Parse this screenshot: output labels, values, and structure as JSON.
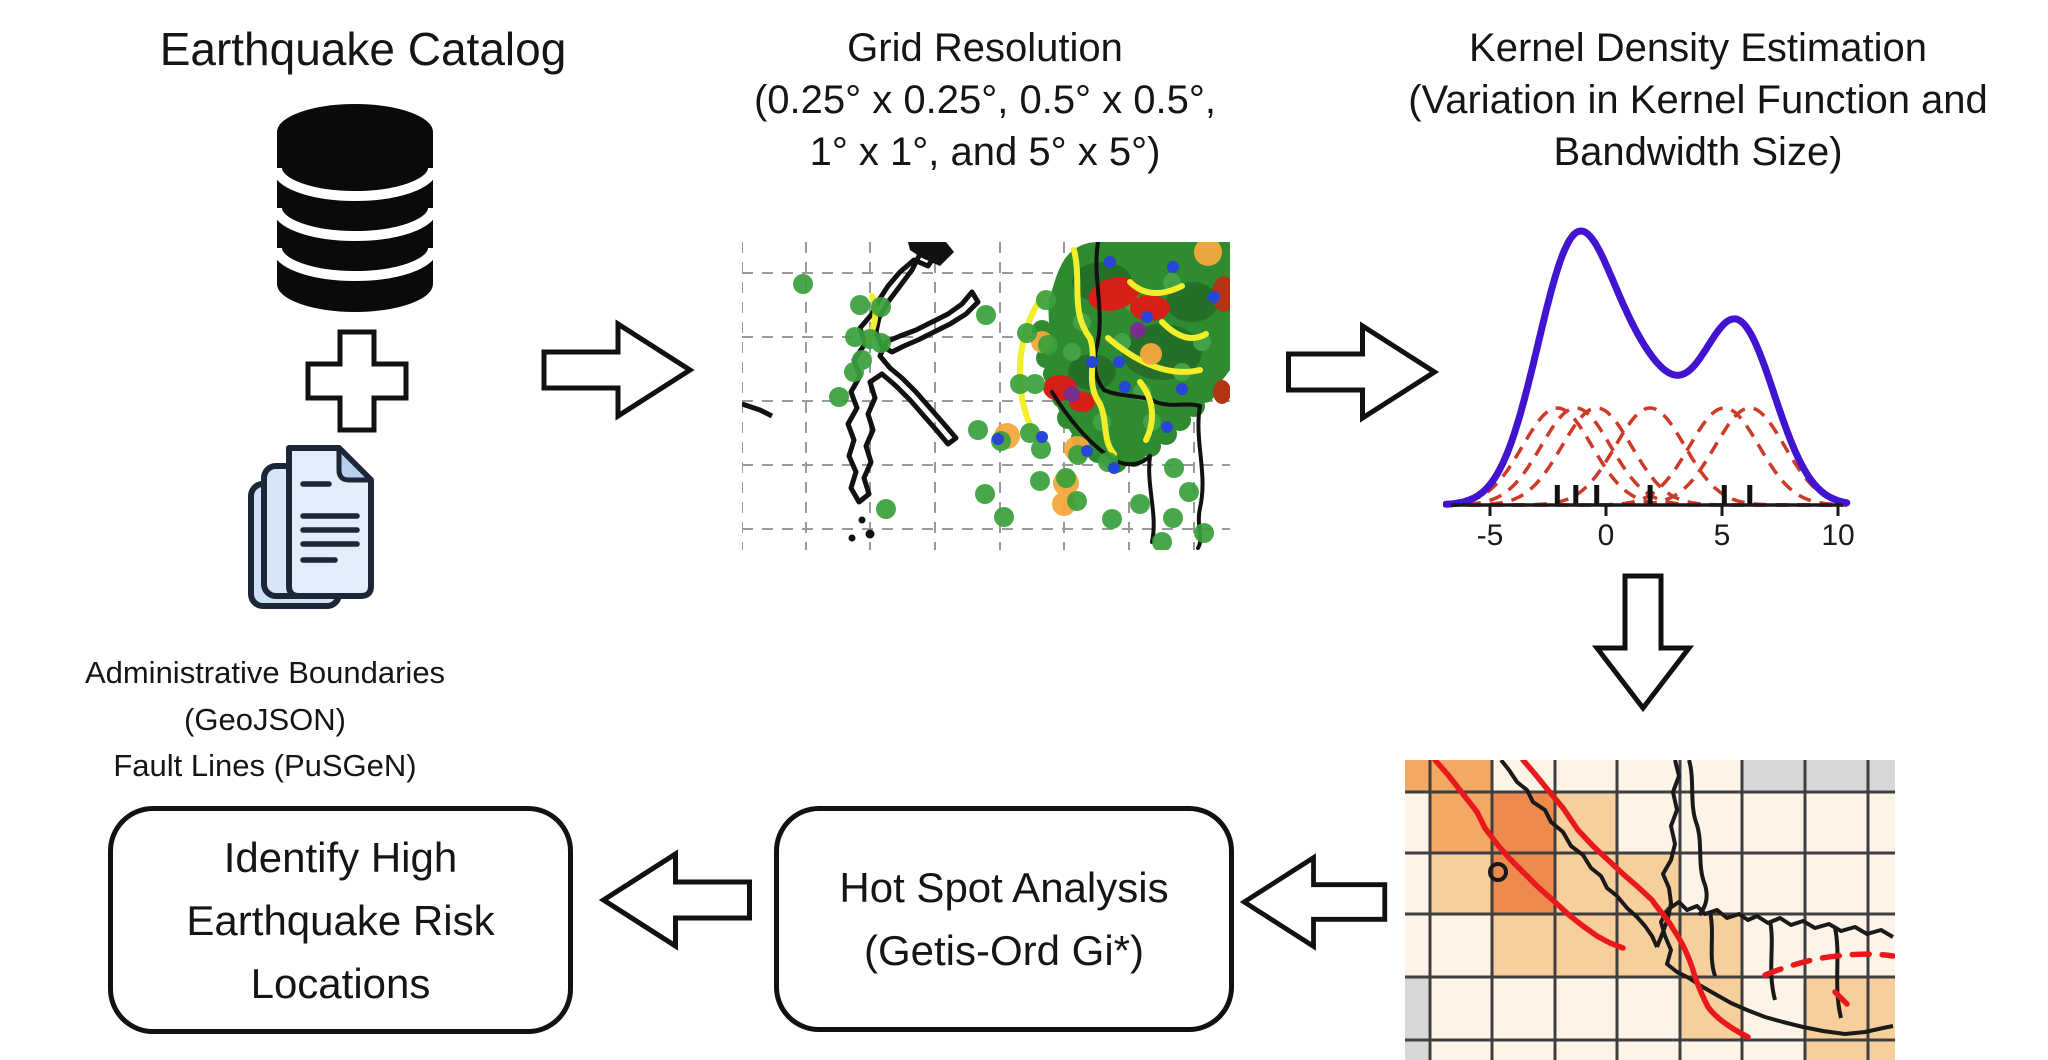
{
  "diagram": {
    "sources": {
      "title": "Earthquake Catalog",
      "caption_line1": "Administrative Boundaries (GeoJSON)",
      "caption_line2": "Fault Lines (PuSGeN)"
    },
    "grid_step": {
      "line1": "Grid Resolution",
      "line2": "(0.25° x 0.25°, 0.5° x 0.5°,",
      "line3": "1° x 1°, and 5° x 5°)"
    },
    "kde_step": {
      "line1": "Kernel Density Estimation",
      "line2": "(Variation in Kernel Function and",
      "line3": "Bandwidth Size)"
    },
    "hotspot_box": {
      "line1": "Hot Spot Analysis",
      "line2": "(Getis-Ord Gi*)"
    },
    "identify_box": {
      "line1": "Identify High",
      "line2": "Earthquake Risk",
      "line3": "Locations"
    },
    "icons": [
      "database-icon",
      "plus-icon",
      "documents-icon",
      "arrow-right-icon",
      "arrow-down-icon",
      "arrow-left-icon"
    ],
    "colors": {
      "outline": "#111111",
      "document_fill": "#dce9fb",
      "kde_curve": "#4313d2",
      "kde_kernel": "#cd3a28",
      "fault_red": "#e8191c",
      "fault_yellow": "#f2ef2a",
      "epicenter_green": "#3aa03c",
      "epicenter_orange": "#f5a83e",
      "epicenter_blue": "#2746d6"
    }
  },
  "chart_data": [
    {
      "type": "line",
      "subtype": "kernel-density-estimation",
      "title": "",
      "data_points": [
        -2.1,
        -1.3,
        -0.4,
        1.9,
        5.1,
        6.2
      ],
      "bandwidth": 1.5,
      "x_ticks": [
        -5,
        0,
        5,
        10
      ],
      "xlim": [
        -6.9,
        10.4
      ],
      "rug": true,
      "grid": "off",
      "curve_color": "#4313d2",
      "kernel_color": "#cd3a28",
      "axis_color": "#1a1a1a"
    },
    {
      "type": "heatmap",
      "subtype": "hotspot-grid-map",
      "palette": [
        "#fdf3e6",
        "#f7cf9d",
        "#f3a964",
        "#ee8a4d",
        "#d8d8d8"
      ],
      "palette_meaning": [
        "cream",
        "light-orange",
        "mid-orange",
        "dark-orange",
        "gray"
      ],
      "col_edges": [
        0,
        25,
        87,
        150,
        212,
        275,
        337,
        400,
        463,
        490
      ],
      "row_edges": [
        0,
        32,
        93,
        154,
        217,
        280,
        300
      ],
      "grid_line_color": "#3f3f3f",
      "matrix": [
        [
          2,
          2,
          0,
          0,
          0,
          0,
          4,
          4,
          4
        ],
        [
          0,
          2,
          3,
          1,
          0,
          0,
          0,
          0,
          0
        ],
        [
          0,
          1,
          3,
          1,
          1,
          0,
          0,
          0,
          0
        ],
        [
          0,
          0,
          1,
          1,
          1,
          1,
          0,
          0,
          0
        ],
        [
          4,
          0,
          0,
          0,
          0,
          1,
          0,
          1,
          1
        ],
        [
          4,
          0,
          0,
          0,
          0,
          0,
          0,
          1,
          1
        ]
      ]
    },
    {
      "type": "scatter",
      "subtype": "epicenter-grid-map",
      "grid": "dashed",
      "marker_colors": [
        "#3aa03c",
        "#f5a83e",
        "#2746d6",
        "#d62015"
      ],
      "fault_line_color": "#f2ef2a",
      "coastline_color": "#111111"
    }
  ]
}
